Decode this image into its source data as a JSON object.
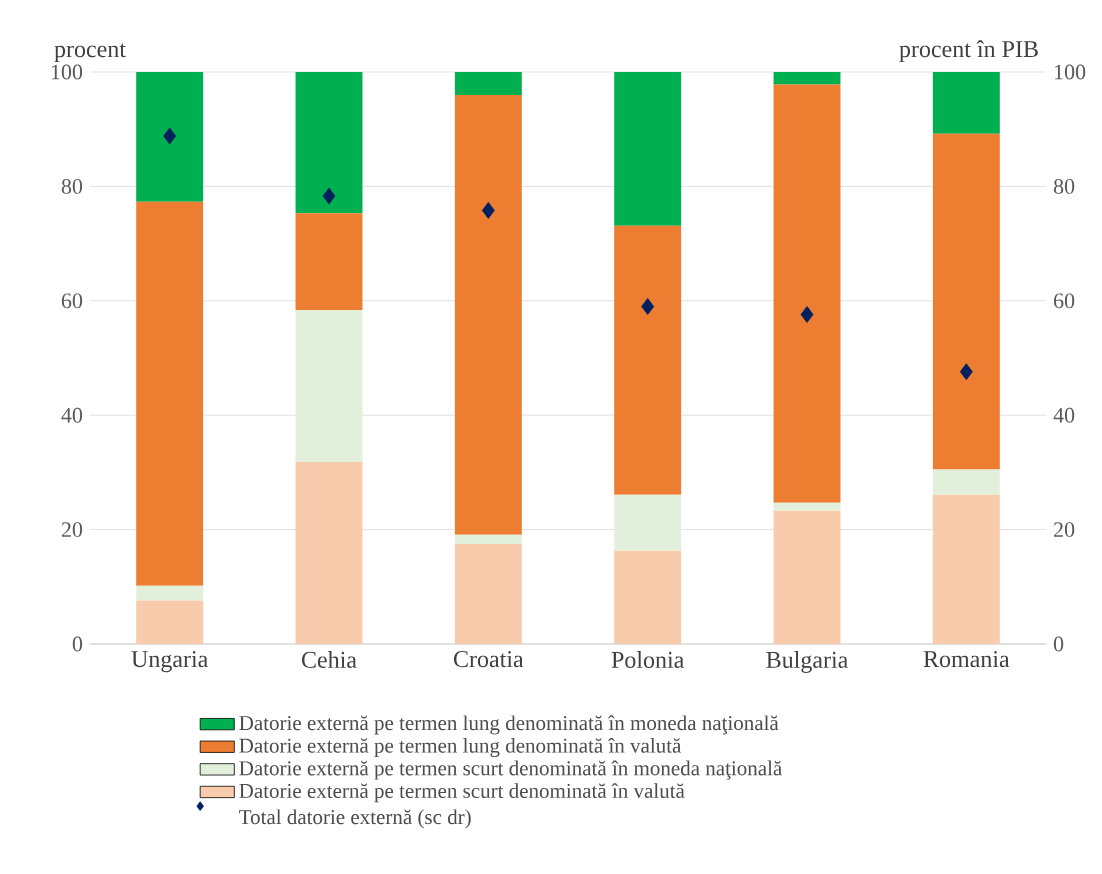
{
  "chart_data": {
    "type": "bar",
    "stacked": true,
    "categories": [
      "Ungaria",
      "Cehia",
      "Croatia",
      "Polonia",
      "Bulgaria",
      "Romania"
    ],
    "ylabel": "procent",
    "y2label": "procent în PIB",
    "ylim": [
      0,
      100
    ],
    "yticks": [
      0,
      20,
      40,
      60,
      80,
      100
    ],
    "y2lim": [
      0,
      100
    ],
    "y2ticks": [
      0,
      20,
      40,
      60,
      80,
      100
    ],
    "grid": "y",
    "legend": "bottom",
    "series": [
      {
        "name": "Datorie externă pe termen scurt denominată în valută",
        "color": "#f8cbad",
        "values": [
          7.6,
          31.8,
          17.5,
          16.3,
          23.3,
          26.1
        ]
      },
      {
        "name": "Datorie externă pe termen scurt denominată în moneda naţională",
        "color": "#e2efda",
        "values": [
          2.6,
          26.6,
          1.6,
          9.8,
          1.4,
          4.4
        ]
      },
      {
        "name": "Datorie externă pe termen lung denominată în valută",
        "color": "#ed7d31",
        "values": [
          67.1,
          16.9,
          76.9,
          47.0,
          73.1,
          58.7
        ]
      },
      {
        "name": "Datorie externă pe termen lung denominată în moneda naţională",
        "color": "#00b050",
        "values": [
          22.7,
          24.7,
          4.0,
          26.9,
          2.2,
          10.8
        ]
      },
      {
        "name": "Total datorie externă (sc dr)",
        "type": "scatter",
        "axis": "y2",
        "marker": "diamond",
        "color": "#002060",
        "values": [
          88.8,
          78.3,
          75.8,
          59.0,
          57.6,
          47.6
        ]
      }
    ]
  }
}
